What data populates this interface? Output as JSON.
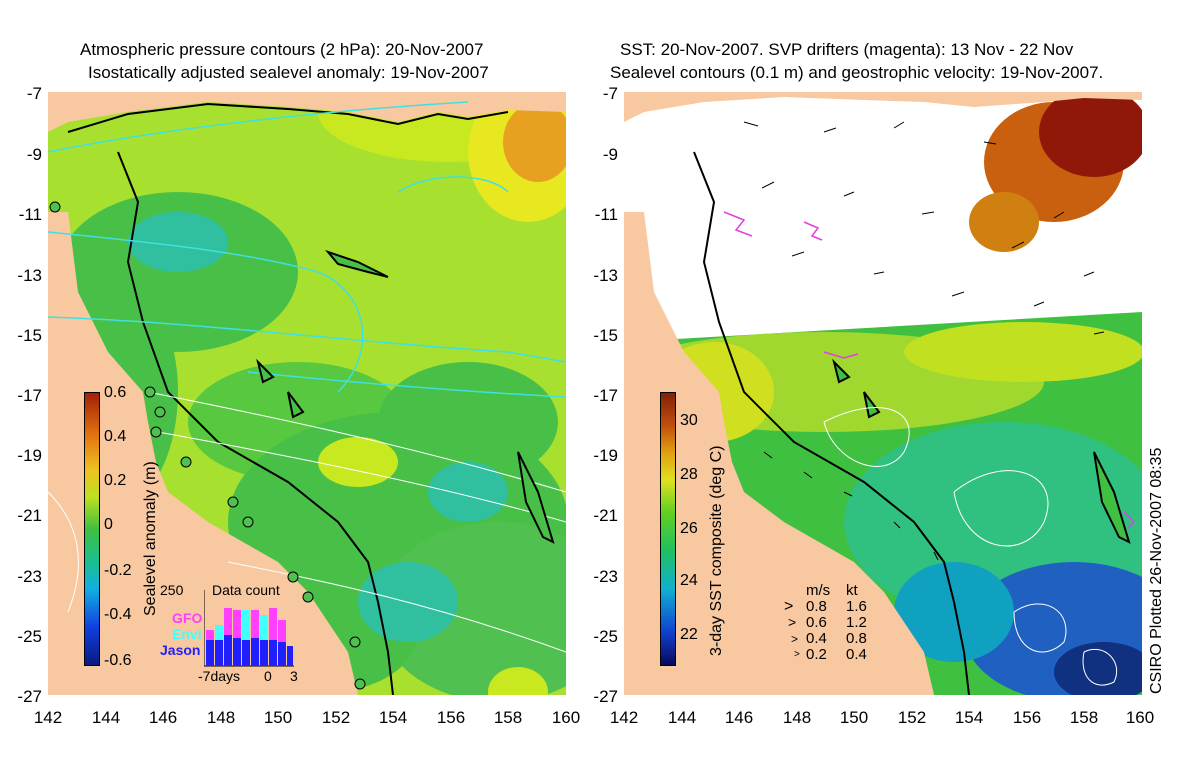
{
  "left_panel": {
    "title_line1": "Atmospheric pressure contours (2 hPa): 20-Nov-2007",
    "title_line2": "Isostatically adjusted sealevel anomaly: 19-Nov-2007",
    "colorbar": {
      "label": "Sealevel anomaly (m)",
      "ticks": [
        "0.6",
        "0.4",
        "0.2",
        "0",
        "-0.2",
        "-0.4",
        "-0.6"
      ],
      "colors": [
        "#0a1a80",
        "#1040e0",
        "#10b0e0",
        "#20c080",
        "#40c040",
        "#c0e020",
        "#f0c020",
        "#e07010",
        "#a02008"
      ]
    },
    "data_count": {
      "max_label": "250",
      "title": "Data count",
      "satellites": [
        {
          "name": "GFO",
          "color": "#ff40ff"
        },
        {
          "name": "Envi",
          "color": "#40ffff"
        },
        {
          "name": "Jason",
          "color": "#2020ff"
        }
      ],
      "xticks": [
        "-7days",
        "0",
        "3"
      ]
    }
  },
  "right_panel": {
    "title_line1": "SST: 20-Nov-2007. SVP drifters (magenta): 13 Nov - 22 Nov",
    "title_line2": "Sealevel contours (0.1 m) and geostrophic velocity: 19-Nov-2007.",
    "colorbar": {
      "label": "3-day SST composite (deg C)",
      "ticks": [
        "30",
        "28",
        "26",
        "24",
        "22"
      ],
      "colors": [
        "#08085a",
        "#1040d0",
        "#10b0d0",
        "#20c060",
        "#60d020",
        "#e0e020",
        "#e0a010",
        "#c05010",
        "#802008"
      ]
    },
    "velocity_legend": {
      "header_ms": "m/s",
      "header_kt": "kt",
      "rows": [
        {
          "ms": "0.8",
          "kt": "1.6"
        },
        {
          "ms": "0.6",
          "kt": "1.2"
        },
        {
          "ms": "0.4",
          "kt": "0.8"
        },
        {
          "ms": "0.2",
          "kt": "0.4"
        }
      ]
    },
    "credit": "CSIRO Plotted 26-Nov-2007 08:35"
  },
  "y_axis_labels": [
    "-7",
    "-9",
    "-11",
    "-13",
    "-15",
    "-17",
    "-19",
    "-21",
    "-23",
    "-25",
    "-27"
  ],
  "x_axis_labels": [
    "142",
    "144",
    "146",
    "148",
    "150",
    "152",
    "154",
    "156",
    "158",
    "160"
  ],
  "colors": {
    "land": "#f8c8a0",
    "sea_green": "#48c048",
    "sea_yellowgreen": "#a8e030",
    "sea_yellow": "#e8e820",
    "sea_orange": "#e8a020",
    "sea_cyan": "#30c0a0",
    "sst_dark_red": "#901808",
    "sst_blue": "#2060c0",
    "drifter_magenta": "#e040e0",
    "pressure_contour": "#40e0e0"
  }
}
